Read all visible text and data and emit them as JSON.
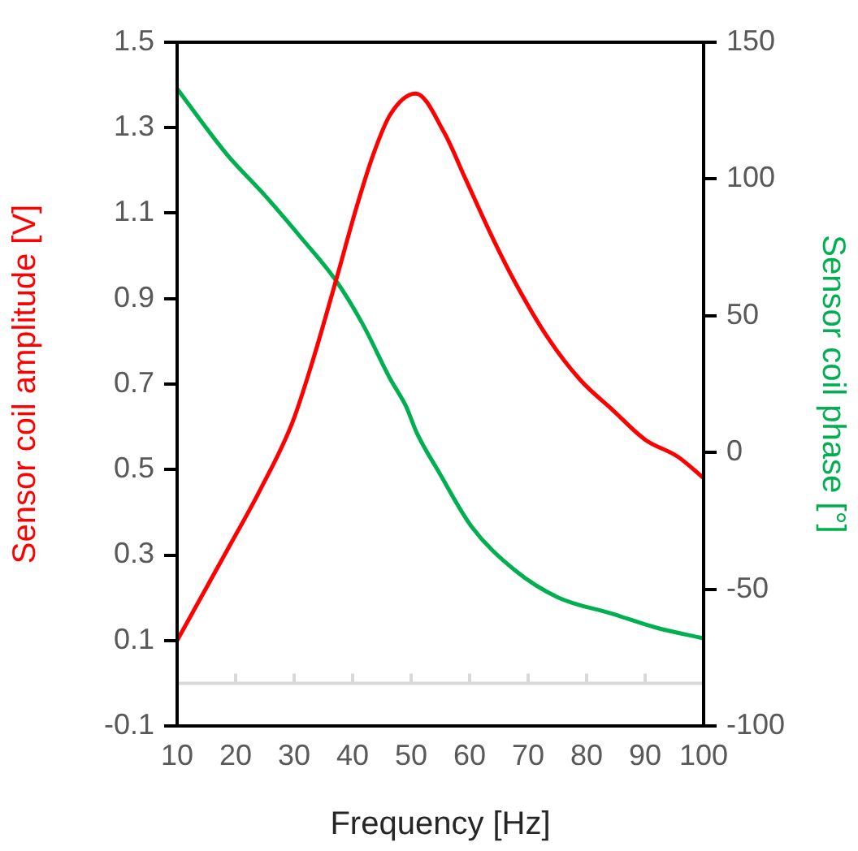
{
  "chart_data": {
    "type": "line",
    "xlabel": "Frequency [Hz]",
    "ylabel": "Sensor coil amplitude [V]",
    "y2label": "Sensor coil phase [°]",
    "xlim": [
      10,
      100
    ],
    "xticks": [
      10,
      20,
      30,
      40,
      50,
      60,
      70,
      80,
      90,
      100
    ],
    "ylim": [
      -0.1,
      1.5
    ],
    "yticks": [
      -0.1,
      0.1,
      0.3,
      0.5,
      0.7,
      0.9,
      1.1,
      1.3,
      1.5
    ],
    "y2lim": [
      -100,
      150
    ],
    "y2ticks": [
      -100,
      -50,
      0,
      50,
      100,
      150
    ],
    "grid": false,
    "legend": false,
    "marker": "none",
    "line_style": "solid",
    "ref_lines": [
      {
        "axis": "y",
        "value": 0,
        "color": "#d9d9d9"
      }
    ],
    "series": [
      {
        "color": "#ff0000",
        "x": [
          10,
          18.5,
          24.1,
          29.7,
          33.3,
          37.1,
          40.8,
          43.6,
          46.4,
          50.8,
          55.6,
          59.3,
          64,
          67.7,
          73.3,
          78.9,
          84.4,
          90,
          95.6,
          100
        ],
        "values": [
          0.1,
          0.31,
          0.45,
          0.61,
          0.76,
          0.94,
          1.12,
          1.24,
          1.33,
          1.38,
          1.29,
          1.18,
          1.04,
          0.94,
          0.81,
          0.71,
          0.64,
          0.57,
          0.53,
          0.48
        ]
      },
      {
        "color": "#00b050",
        "axis": "y2",
        "x": [
          10,
          18.5,
          25,
          31.4,
          37.1,
          41.7,
          46.4,
          49.1,
          51,
          54.7,
          60.3,
          67.7,
          75.1,
          84.4,
          91.8,
          100
        ],
        "values": [
          133,
          109,
          94,
          78,
          63,
          47,
          27,
          17,
          7,
          -7,
          -27,
          -43,
          -53,
          -59,
          -64,
          -68
        ]
      }
    ]
  }
}
